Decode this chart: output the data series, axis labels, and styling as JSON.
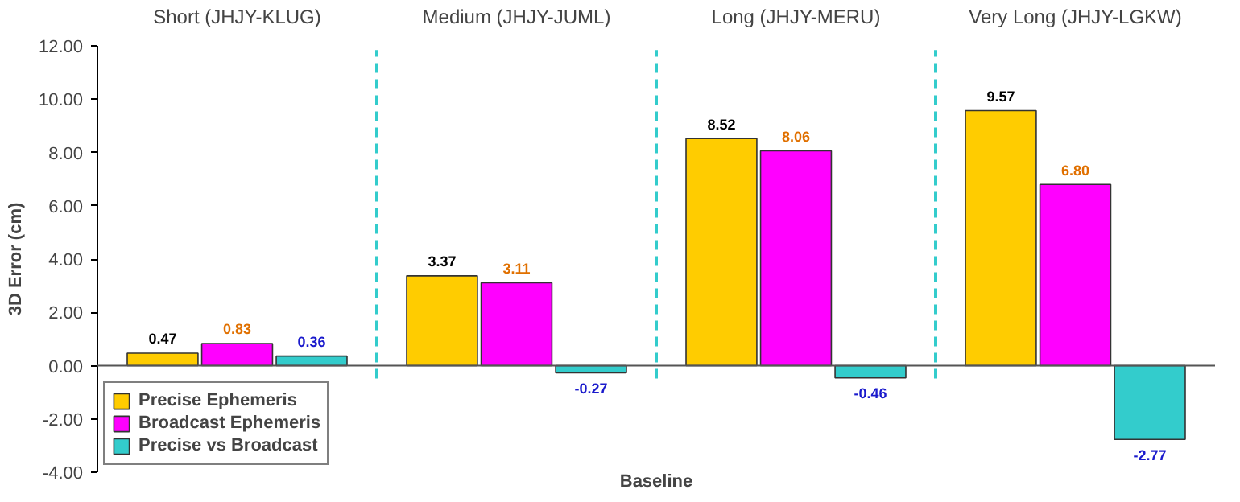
{
  "chart_data": {
    "type": "bar",
    "xlabel": "Baseline",
    "ylabel": "3D Error (cm)",
    "categories": [
      "Short (JHJY-KLUG)",
      "Medium (JHJY-JUML)",
      "Long (JHJY-MERU)",
      "Very Long (JHJY-LGKW)"
    ],
    "series": [
      {
        "name": "Precise Ephemeris",
        "color": "#ffcc00",
        "values": [
          0.47,
          3.37,
          8.52,
          9.57
        ],
        "value_labels": [
          "0.47",
          "3.37",
          "8.52",
          "9.57"
        ]
      },
      {
        "name": "Broadcast Ephemeris",
        "color": "#ff00ff",
        "values": [
          0.83,
          3.11,
          8.06,
          6.8
        ],
        "value_labels": [
          "0.83",
          "3.11",
          "8.06",
          "6.80"
        ]
      },
      {
        "name": "Precise vs Broadcast",
        "color": "#33cccc",
        "values": [
          0.36,
          -0.27,
          -0.46,
          -2.77
        ],
        "value_labels": [
          "0.36",
          "-0.27",
          "-0.46",
          "-2.77"
        ]
      }
    ],
    "ylim": [
      -4,
      12
    ],
    "yticks": [
      {
        "value": -4,
        "label": "-4.00"
      },
      {
        "value": -2,
        "label": "-2.00"
      },
      {
        "value": 0,
        "label": "0.00"
      },
      {
        "value": 2,
        "label": "2.00"
      },
      {
        "value": 4,
        "label": "4.00"
      },
      {
        "value": 6,
        "label": "6.00"
      },
      {
        "value": 8,
        "label": "8.00"
      },
      {
        "value": 10,
        "label": "10.00"
      },
      {
        "value": 12,
        "label": "12.00"
      }
    ],
    "legend": "bottom left",
    "grid": false
  }
}
